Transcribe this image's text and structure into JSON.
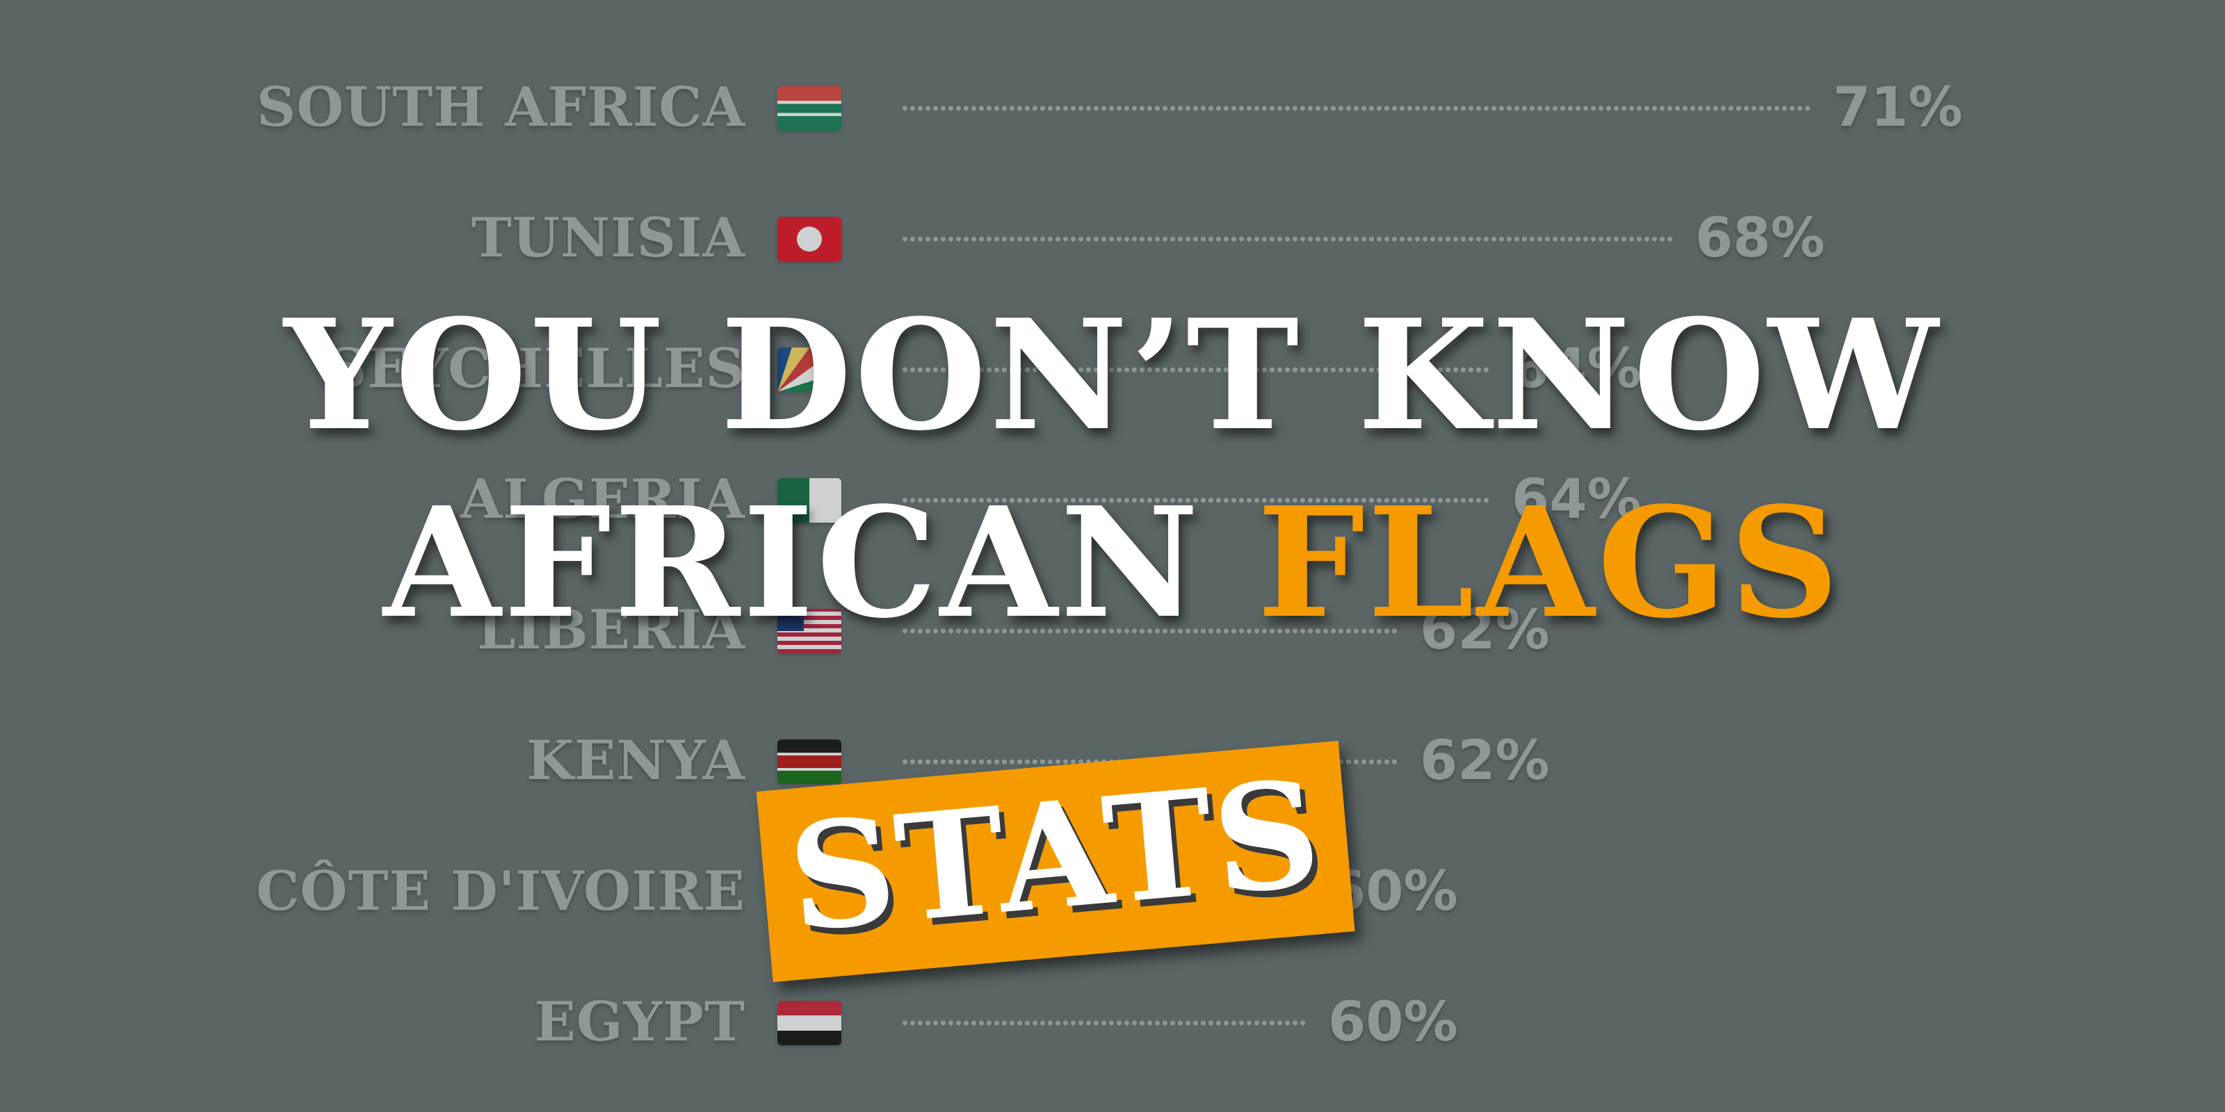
{
  "chart_data": {
    "type": "bar",
    "categories": [
      "South Africa",
      "Tunisia",
      "Seychelles",
      "Algeria",
      "Liberia",
      "Kenya",
      "Côte d'Ivoire",
      "Egypt"
    ],
    "values": [
      71,
      68,
      64,
      64,
      62,
      62,
      60,
      60
    ],
    "value_labels": [
      "71%",
      "68%",
      "64%",
      "64%",
      "62%",
      "62%",
      "60%",
      "60%"
    ],
    "flags": [
      "south-africa-flag-icon",
      "tunisia-flag-icon",
      "seychelles-flag-icon",
      "algeria-flag-icon",
      "liberia-flag-icon",
      "kenya-flag-icon",
      "cote-divoire-flag-icon",
      "egypt-flag-icon"
    ],
    "title": "",
    "xlabel": "",
    "ylabel": "",
    "ylim": [
      0,
      100
    ]
  },
  "headline": {
    "line1": "You don’t know",
    "line2_white": "African",
    "line2_accent": "Flags",
    "badge": "STATS"
  },
  "colors": {
    "background": "#5b6565",
    "faded_text": "#8f9797",
    "accent": "#f59b00",
    "headline": "#ffffff"
  }
}
